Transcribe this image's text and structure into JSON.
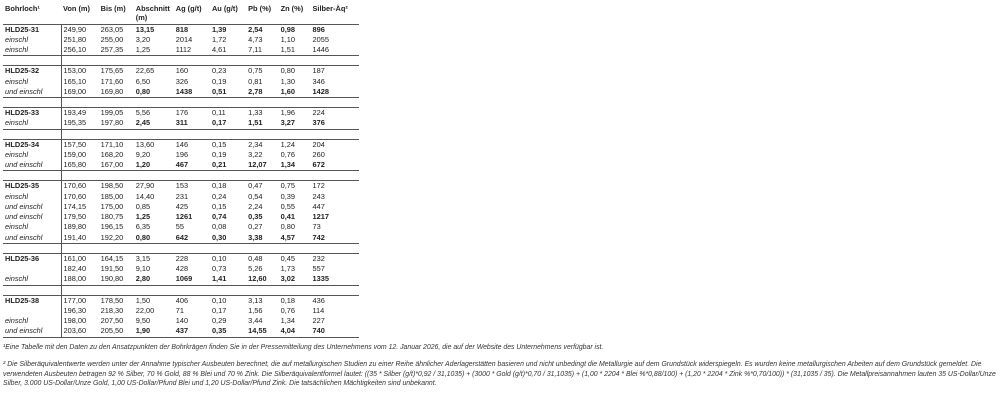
{
  "headers": [
    "Bohrloch¹",
    "Von (m)",
    "Bis (m)",
    "Abschnitt (m)",
    "Ag (g/t)",
    "Au (g/t)",
    "Pb (%)",
    "Zn (%)",
    "Silber-Äq²"
  ],
  "groups": [
    {
      "hole": "HLD25-31",
      "rows": [
        {
          "label": "HLD25-31",
          "values": [
            "249,90",
            "263,05",
            "13,15",
            "818",
            "1,39",
            "2,54",
            "0,98",
            "896"
          ],
          "bold": true
        },
        {
          "label": "einschl",
          "values": [
            "251,80",
            "255,00",
            "3,20",
            "2014",
            "1,72",
            "4,73",
            "1,10",
            "2055"
          ],
          "bold": false
        },
        {
          "label": "einschl",
          "values": [
            "256,10",
            "257,35",
            "1,25",
            "1112",
            "4,61",
            "7,11",
            "1,51",
            "1446"
          ],
          "bold": false
        }
      ]
    },
    {
      "hole": "HLD25-32",
      "rows": [
        {
          "label": "HLD25-32",
          "values": [
            "153,00",
            "175,65",
            "22,65",
            "160",
            "0,23",
            "0,75",
            "0,80",
            "187"
          ],
          "bold": false
        },
        {
          "label": "einschl",
          "values": [
            "165,10",
            "171,60",
            "6,50",
            "326",
            "0,19",
            "0,81",
            "1,30",
            "346"
          ],
          "bold": false
        },
        {
          "label": "und einschl",
          "values": [
            "169,00",
            "169,80",
            "0,80",
            "1438",
            "0,51",
            "2,78",
            "1,60",
            "1428"
          ],
          "bold": true
        }
      ]
    },
    {
      "hole": "HLD25-33",
      "rows": [
        {
          "label": "HLD25-33",
          "values": [
            "193,49",
            "199,05",
            "5,56",
            "176",
            "0,11",
            "1,33",
            "1,96",
            "224"
          ],
          "bold": false
        },
        {
          "label": "einschl",
          "values": [
            "195,35",
            "197,80",
            "2,45",
            "311",
            "0,17",
            "1,51",
            "3,27",
            "376"
          ],
          "bold": true
        }
      ]
    },
    {
      "hole": "HLD25-34",
      "rows": [
        {
          "label": "HLD25-34",
          "values": [
            "157,50",
            "171,10",
            "13,60",
            "146",
            "0,15",
            "2,34",
            "1,24",
            "204"
          ],
          "bold": false
        },
        {
          "label": "einschl",
          "values": [
            "159,00",
            "168,20",
            "9,20",
            "196",
            "0,19",
            "3,22",
            "0,76",
            "260"
          ],
          "bold": false
        },
        {
          "label": "und einschl",
          "values": [
            "165,80",
            "167,00",
            "1,20",
            "467",
            "0,21",
            "12,07",
            "1,34",
            "672"
          ],
          "bold": true
        }
      ]
    },
    {
      "hole": "HLD25-35",
      "rows": [
        {
          "label": "HLD25-35",
          "values": [
            "170,60",
            "198,50",
            "27,90",
            "153",
            "0,18",
            "0,47",
            "0,75",
            "172"
          ],
          "bold": false
        },
        {
          "label": "einschl",
          "values": [
            "170,60",
            "185,00",
            "14,40",
            "231",
            "0,24",
            "0,54",
            "0,39",
            "243"
          ],
          "bold": false
        },
        {
          "label": "und einschl",
          "values": [
            "174,15",
            "175,00",
            "0,85",
            "425",
            "0,15",
            "2,24",
            "0,55",
            "447"
          ],
          "bold": false
        },
        {
          "label": "und einschl",
          "values": [
            "179,50",
            "180,75",
            "1,25",
            "1261",
            "0,74",
            "0,35",
            "0,41",
            "1217"
          ],
          "bold": true
        },
        {
          "label": "einschl",
          "values": [
            "189,80",
            "196,15",
            "6,35",
            "55",
            "0,08",
            "0,27",
            "0,80",
            "73"
          ],
          "bold": false
        },
        {
          "label": "und einschl",
          "values": [
            "191,40",
            "192,20",
            "0,80",
            "642",
            "0,30",
            "3,38",
            "4,57",
            "742"
          ],
          "bold": true
        }
      ]
    },
    {
      "hole": "HLD25-36",
      "rows": [
        {
          "label": "HLD25-36",
          "values": [
            "161,00",
            "164,15",
            "3,15",
            "228",
            "0,10",
            "0,48",
            "0,45",
            "232"
          ],
          "bold": false
        },
        {
          "label": "",
          "values": [
            "182,40",
            "191,50",
            "9,10",
            "428",
            "0,73",
            "5,26",
            "1,73",
            "557"
          ],
          "bold": false
        },
        {
          "label": "einschl",
          "values": [
            "188,00",
            "190,80",
            "2,80",
            "1069",
            "1,41",
            "12,60",
            "3,02",
            "1335"
          ],
          "bold": true
        }
      ]
    },
    {
      "hole": "HLD25-38",
      "rows": [
        {
          "label": "HLD25-38",
          "values": [
            "177,00",
            "178,50",
            "1,50",
            "406",
            "0,10",
            "3,13",
            "0,18",
            "436"
          ],
          "bold": false
        },
        {
          "label": "",
          "values": [
            "196,30",
            "218,30",
            "22,00",
            "71",
            "0,17",
            "1,56",
            "0,76",
            "114"
          ],
          "bold": false
        },
        {
          "label": "einschl",
          "values": [
            "198,00",
            "207,50",
            "9,50",
            "140",
            "0,29",
            "3,44",
            "1,34",
            "227"
          ],
          "bold": false
        },
        {
          "label": "und einschl",
          "values": [
            "203,60",
            "205,50",
            "1,90",
            "437",
            "0,35",
            "14,55",
            "4,04",
            "740"
          ],
          "bold": true
        }
      ]
    }
  ],
  "footnotes": {
    "fn1": "¹Eine Tabelle mit den Daten zu den Ansatzpunkten der Bohrkrägen finden Sie in der Pressemitteilung des Unternehmens vom 12. Januar 2026, die auf der Website des Unternehmens verfügbar ist.",
    "fn2": "² Die Silberäquivalentwerte werden unter der Annahme typischer Ausbeuten berechnet, die auf metallurgischen Studien zu einer Reihe ähnlicher Aderlagerstätten basieren und nicht unbedingt die Metallurgie auf dem Grundstück widerspiegeln. Es wurden keine metallurgischen Arbeiten auf dem Grundstück gemeldet. Die verwendeten Ausbeuten betragen 92 % Silber, 70 % Gold, 88 % Blei und 70 % Zink. Die Silberäquivalentformel lautet: ((35 * Silber (g/t)*0,92 / 31,1035) + (3000 * Gold (g/t)*0,70 / 31,1035) + (1,00 * 2204 * Blei %*0,88/100) + (1,20 * 2204 * Zink %*0,70/100)) * (31,1035 / 35). Die Metallpreisannahmen lauten 35 US-Dollar/Unze Silber, 3.000 US-Dollar/Unze Gold, 1,00 US-Dollar/Pfund Blei und 1,20 US-Dollar/Pfund Zink. Die tatsächlichen Mächtigkeiten sind unbekannt."
  }
}
